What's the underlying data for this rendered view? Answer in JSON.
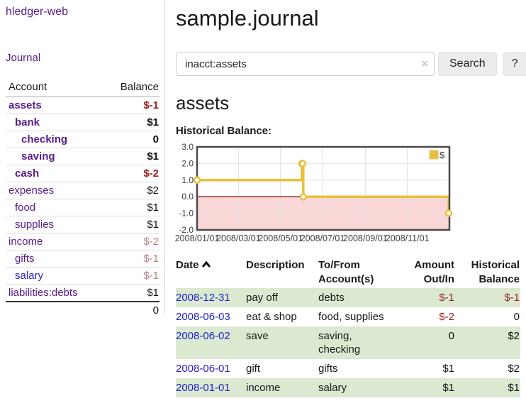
{
  "sidebar": {
    "brand": "hledger-web",
    "journal_link": "Journal",
    "accounts_table": {
      "account_header": "Account",
      "balance_header": "Balance",
      "rows": [
        {
          "name": "assets",
          "indent": 1,
          "bold": true,
          "balance": "$-1",
          "balance_color": "negative",
          "link_color": "purple"
        },
        {
          "name": "bank",
          "indent": 2,
          "bold": true,
          "balance": "$1",
          "balance_color": "normal",
          "link_color": "purple"
        },
        {
          "name": "checking",
          "indent": 3,
          "bold": true,
          "balance": "0",
          "balance_color": "normal",
          "link_color": "purple"
        },
        {
          "name": "saving",
          "indent": 3,
          "bold": true,
          "balance": "$1",
          "balance_color": "normal",
          "link_color": "purple"
        },
        {
          "name": "cash",
          "indent": 2,
          "bold": true,
          "balance": "$-2",
          "balance_color": "negative",
          "link_color": "purple"
        },
        {
          "name": "expenses",
          "indent": 1,
          "bold": false,
          "balance": "$2",
          "balance_color": "normal",
          "link_color": "purple"
        },
        {
          "name": "food",
          "indent": 2,
          "bold": false,
          "balance": "$1",
          "balance_color": "normal",
          "link_color": "purple"
        },
        {
          "name": "supplies",
          "indent": 2,
          "bold": false,
          "balance": "$1",
          "balance_color": "normal",
          "link_color": "purple"
        },
        {
          "name": "income",
          "indent": 1,
          "bold": false,
          "balance": "$-2",
          "balance_color": "faded-negative",
          "link_color": "purple"
        },
        {
          "name": "gifts",
          "indent": 2,
          "bold": false,
          "balance": "$-1",
          "balance_color": "faded-negative",
          "link_color": "purple"
        },
        {
          "name": "salary",
          "indent": 2,
          "bold": false,
          "balance": "$-1",
          "balance_color": "faded-negative",
          "link_color": "blue"
        },
        {
          "name": "liabilities:debts",
          "indent": 1,
          "bold": false,
          "balance": "$1",
          "balance_color": "normal",
          "link_color": "purple"
        }
      ],
      "total": "0"
    }
  },
  "header": {
    "title": "sample.journal"
  },
  "search": {
    "value": "inacct:assets",
    "clear_icon": "×",
    "button_label": "Search",
    "help_label": "?"
  },
  "account_page": {
    "heading": "assets",
    "chart_label": "Historical Balance:"
  },
  "chart_data": {
    "type": "line",
    "step": true,
    "title": "Historical Balance",
    "series": [
      {
        "name": "$",
        "color": "#e9bf3e",
        "points": [
          [
            "2008-01-01",
            1
          ],
          [
            "2008-06-01",
            2
          ],
          [
            "2008-06-02",
            2
          ],
          [
            "2008-06-03",
            0
          ],
          [
            "2008-12-31",
            -1
          ]
        ]
      }
    ],
    "x_range": [
      "2008-01-01",
      "2009-01-01"
    ],
    "x_ticks": [
      {
        "label": "2008/01/01",
        "date": "2008-01-01"
      },
      {
        "label": "2008/03/01",
        "date": "2008-03-01"
      },
      {
        "label": "2008/05/01",
        "date": "2008-05-01"
      },
      {
        "label": "2008/07/01",
        "date": "2008-07-01"
      },
      {
        "label": "2008/09/01",
        "date": "2008-09-01"
      },
      {
        "label": "2008/11/01",
        "date": "2008-11-01"
      }
    ],
    "ylim": [
      -2,
      3
    ],
    "y_ticks": [
      {
        "label": "3.0",
        "value": 3
      },
      {
        "label": "2.0",
        "value": 2
      },
      {
        "label": "1.0",
        "value": 1
      },
      {
        "label": "0.0",
        "value": 0
      },
      {
        "label": "-1.0",
        "value": -1
      },
      {
        "label": "-2.0",
        "value": -2
      }
    ],
    "legend": {
      "label": "$",
      "position": "top-right"
    },
    "grid": true,
    "negative_region_fill": "#f9d7d7",
    "zero_line_color": "#8b1a1a",
    "plot_border_color": "#4a4a4a",
    "grid_color": "#e0e0e0"
  },
  "register_table": {
    "headers": {
      "date": "Date",
      "description": "Description",
      "tofrom": "To/From\nAccount(s)",
      "amount": "Amount\nOut/In",
      "balance": "Historical\nBalance"
    },
    "rows": [
      {
        "date": "2008-12-31",
        "description": "pay off",
        "tofrom": "debts",
        "amount": "$-1",
        "amount_color": "negative",
        "balance": "$-1",
        "balance_color": "negative"
      },
      {
        "date": "2008-06-03",
        "description": "eat & shop",
        "tofrom": "food, supplies",
        "amount": "$-2",
        "amount_color": "negative",
        "balance": "0",
        "balance_color": "normal"
      },
      {
        "date": "2008-06-02",
        "description": "save",
        "tofrom": "saving, checking",
        "amount": "0",
        "amount_color": "normal",
        "balance": "$2",
        "balance_color": "normal"
      },
      {
        "date": "2008-06-01",
        "description": "gift",
        "tofrom": "gifts",
        "amount": "$1",
        "amount_color": "normal",
        "balance": "$2",
        "balance_color": "normal"
      },
      {
        "date": "2008-01-01",
        "description": "income",
        "tofrom": "salary",
        "amount": "$1",
        "amount_color": "normal",
        "balance": "$1",
        "balance_color": "normal"
      }
    ]
  }
}
